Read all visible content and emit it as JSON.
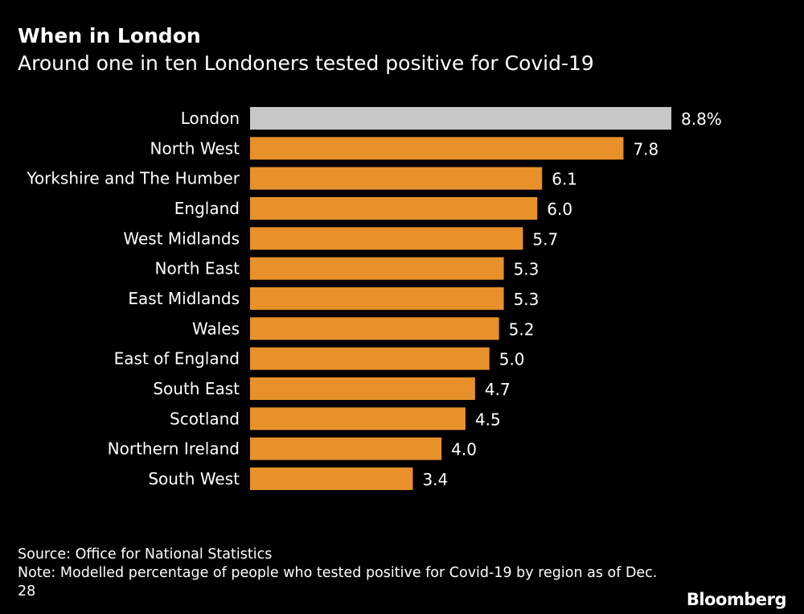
{
  "title": "When in London",
  "subtitle": "Around one in ten Londoners tested positive for Covid-19",
  "colors": {
    "highlight": "#c8c8c8",
    "bar": "#e8912a",
    "background": "#000000",
    "text": "#ffffff"
  },
  "chart_data": {
    "type": "bar",
    "orientation": "horizontal",
    "categories": [
      "London",
      "North West",
      "Yorkshire and The Humber",
      "England",
      "West Midlands",
      "North East",
      "East Midlands",
      "Wales",
      "East of England",
      "South East",
      "Scotland",
      "Northern Ireland",
      "South West"
    ],
    "values": [
      8.8,
      7.8,
      6.1,
      6.0,
      5.7,
      5.3,
      5.3,
      5.2,
      5.0,
      4.7,
      4.5,
      4.0,
      3.4
    ],
    "value_labels": [
      "8.8%",
      "7.8",
      "6.1",
      "6.0",
      "5.7",
      "5.3",
      "5.3",
      "5.2",
      "5.0",
      "4.7",
      "4.5",
      "4.0",
      "3.4"
    ],
    "highlighted_category": "London",
    "unit": "%",
    "xlim": [
      0,
      8.8
    ],
    "title": "When in London",
    "subtitle": "Around one in ten Londoners tested positive for Covid-19",
    "xlabel": "",
    "ylabel": ""
  },
  "footer": {
    "source": "Source: Office for National Statistics",
    "note": "Note: Modelled percentage of people who tested positive for Covid-19 by region as of Dec. 28",
    "brand": "Bloomberg"
  }
}
